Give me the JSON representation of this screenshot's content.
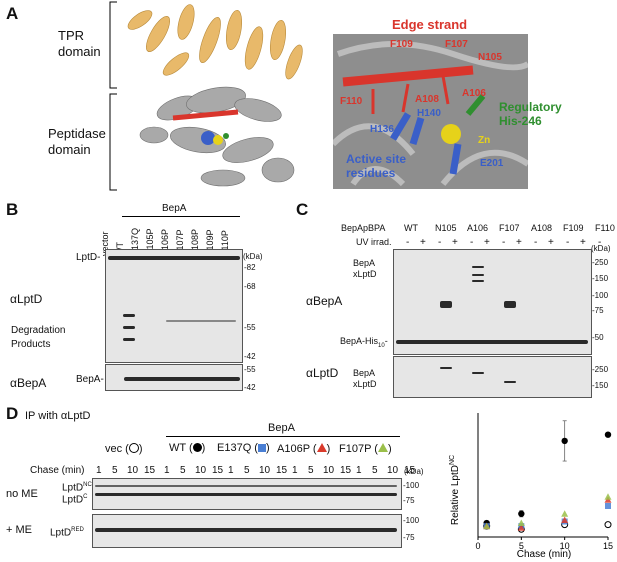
{
  "panelA": {
    "letter": "A",
    "tpr_domain": "TPR\ndomain",
    "peptidase_domain": "Peptidase\ndomain",
    "edge_strand": "Edge strand",
    "residues": [
      "F109",
      "F107",
      "N105",
      "F110",
      "A108",
      "A106",
      "H140",
      "H136",
      "E201"
    ],
    "regulatory": "Regulatory\nHis-246",
    "zn": "Zn",
    "active_site": "Active site\nresidues",
    "colors": {
      "tpr": "#e8b96a",
      "peptidase": "#9a9a9a",
      "edge": "#d9352c",
      "active": "#3a5fc8",
      "regulatory": "#2f8f2f",
      "zn": "#e6d21a"
    }
  },
  "panelB": {
    "letter": "B",
    "group": "BepA",
    "lanes": [
      "vector",
      "WT",
      "E137Q",
      "N105P",
      "A106P",
      "F107P",
      "A108P",
      "F109P",
      "F110P"
    ],
    "unit": "(kDa)",
    "top_markers": [
      "-82",
      "-68",
      "-55",
      "-42"
    ],
    "bottom_markers": [
      "-55",
      "-42"
    ],
    "row1_label": "αLptD",
    "row2_label": "αBepA",
    "lptd": "LptD-",
    "bepa": "BepA-",
    "degradation": "Degradation\nProducts"
  },
  "panelC": {
    "letter": "C",
    "header": "BepApBPA",
    "lanes": [
      "WT",
      "N105",
      "A106",
      "F107",
      "A108",
      "F109",
      "F110"
    ],
    "uv": "UV irrad.",
    "signs": [
      "-",
      "+"
    ],
    "unit": "(kDa)",
    "markers_top": [
      "-250",
      "-150",
      "-100",
      "-75",
      "-50"
    ],
    "markers_bottom": [
      "-250",
      "-150"
    ],
    "row1_label": "αBepA",
    "row2_label": "αLptD",
    "xl1": "BepA\nxLptD",
    "xl2": "BepA\nxLptD",
    "his": "BepA-His",
    "his_sub": "10",
    "his_tail": "-"
  },
  "panelD": {
    "letter": "D",
    "ip": "IP with αLptD",
    "bepa": "BepA",
    "groups": [
      "vec (",
      "WT (",
      "E137Q (",
      "A106P (",
      "F107P ("
    ],
    "group_close": ")",
    "chase": "Chase (min)",
    "timepoints": [
      "1",
      "5",
      "10",
      "15"
    ],
    "no_me": "no ME",
    "plus_me": "+ ME",
    "lptd_nc": "LptD",
    "nc_sup": "NC",
    "lptd_c": "LptD",
    "c_sup": "C",
    "lptd_red": "LptD",
    "red_sup": "RED",
    "unit": "(kDa)",
    "markers_top": [
      "-100",
      "-75"
    ],
    "markers_bottom": [
      "-100",
      "-75"
    ]
  },
  "chart_data": {
    "type": "scatter",
    "xlabel": "Chase (min)",
    "ylabel": "Relative LptD",
    "ylabel_sup": "NC",
    "xlim": [
      0,
      15
    ],
    "ylim": [
      0,
      0.8
    ],
    "xticks": [
      "0",
      "5",
      "10",
      "15"
    ],
    "x": [
      1,
      5,
      10,
      15
    ],
    "series": [
      {
        "name": "vec",
        "marker": "open-circle",
        "color": "#000000",
        "values": [
          0.07,
          0.05,
          0.08,
          0.08
        ]
      },
      {
        "name": "WT",
        "marker": "filled-circle",
        "color": "#000000",
        "values": [
          0.09,
          0.15,
          0.62,
          0.66
        ],
        "error": [
          0.01,
          0.02,
          0.13,
          0.0
        ]
      },
      {
        "name": "E137Q",
        "marker": "square",
        "color": "#4a7fd4",
        "values": [
          0.07,
          0.07,
          0.1,
          0.2
        ]
      },
      {
        "name": "A106P",
        "marker": "triangle",
        "color": "#d93a2b",
        "values": [
          0.07,
          0.06,
          0.11,
          0.24
        ]
      },
      {
        "name": "F107P",
        "marker": "triangle",
        "color": "#9bbf4a",
        "values": [
          0.07,
          0.09,
          0.15,
          0.26
        ]
      }
    ]
  }
}
